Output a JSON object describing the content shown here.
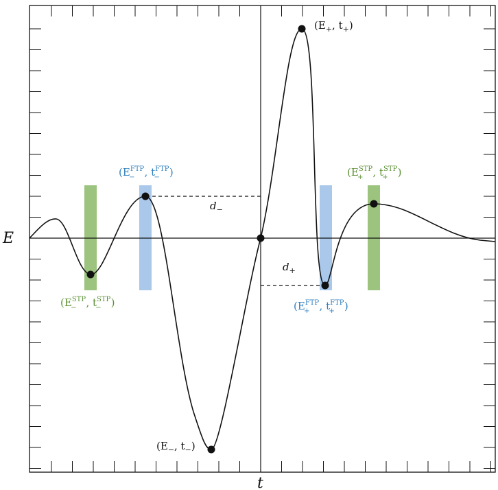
{
  "axes": {
    "y_label": "E",
    "x_label": "t"
  },
  "colors": {
    "curve": "#111111",
    "green_band": "#9cc47e",
    "blue_band": "#a9c8ea",
    "green_text": "#5a8f32",
    "blue_text": "#2f7fbf"
  },
  "labels": {
    "max_point": {
      "main": "(E",
      "sub1": "+",
      "mid": ", t",
      "sub2": "+",
      "close": ")"
    },
    "min_point": {
      "main": "(E",
      "sub1": "−",
      "mid": ", t",
      "sub2": "−",
      "close": ")"
    },
    "ftp_minus": {
      "open": "(E",
      "sup1": "FTP",
      "sub1": "−",
      "mid": ", t",
      "sup2": "FTP",
      "sub2": "−",
      "close": ")"
    },
    "stp_minus": {
      "open": "(E",
      "sup1": "STP",
      "sub1": "−",
      "mid": ", t",
      "sup2": "STP",
      "sub2": "−",
      "close": ")"
    },
    "ftp_plus": {
      "open": "(E",
      "sup1": "FTP",
      "sub1": "+",
      "mid": ", t",
      "sup2": "FTP",
      "sub2": "+",
      "close": ")"
    },
    "stp_plus": {
      "open": "(E",
      "sup1": "STP",
      "sub1": "+",
      "mid": ", t",
      "sup2": "STP",
      "sub2": "+",
      "close": ")"
    },
    "d_minus": {
      "main": "d",
      "sub": "−"
    },
    "d_plus": {
      "main": "d",
      "sub": "+"
    }
  }
}
